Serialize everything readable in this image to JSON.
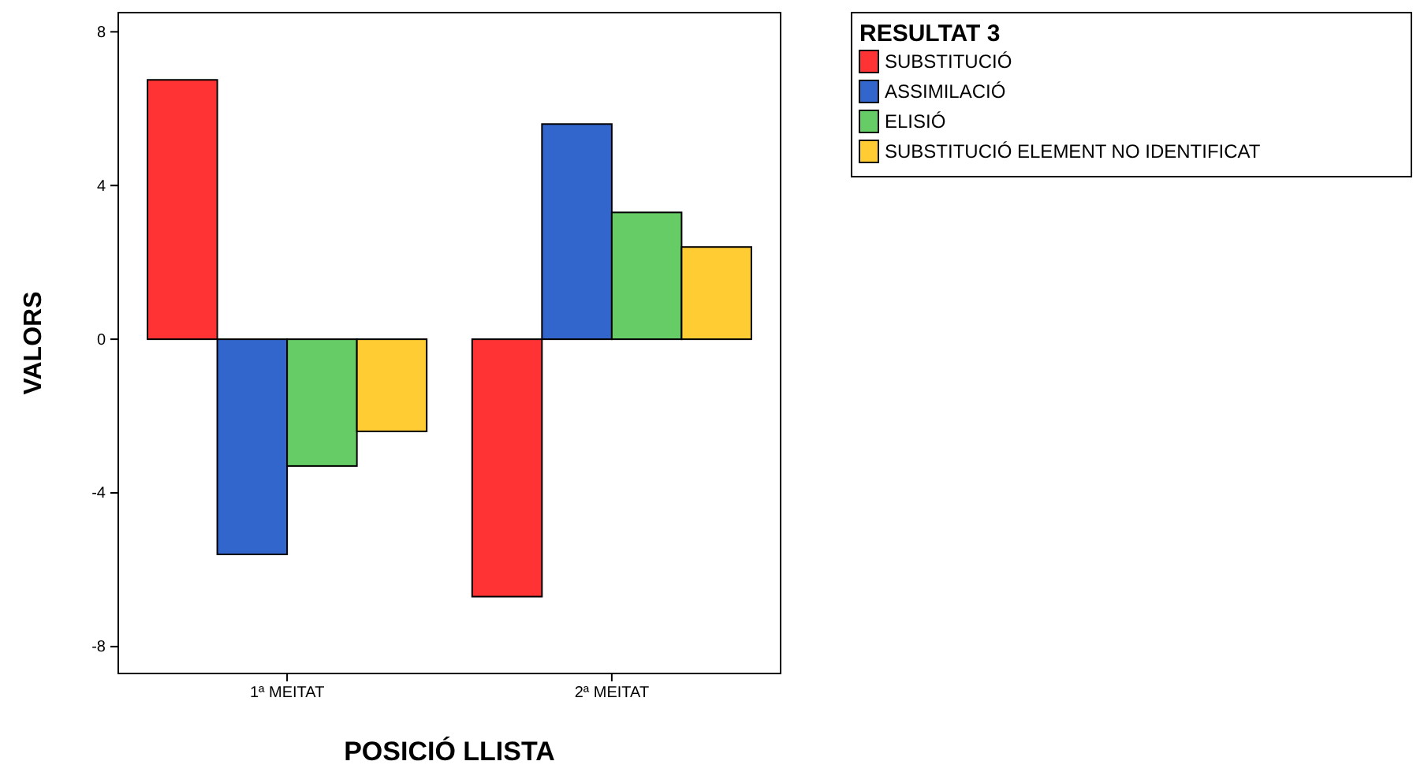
{
  "chart_data": {
    "type": "bar",
    "xlabel": "POSICIÓ LLISTA",
    "ylabel": "VALORS",
    "legend_title": "RESULTAT 3",
    "legend": "right",
    "grid": false,
    "categories": [
      "1ª MEITAT",
      "2ª MEITAT"
    ],
    "series": [
      {
        "name": "SUBSTITUCIÓ",
        "color": "#ff3333",
        "values": [
          6.75,
          -6.7
        ]
      },
      {
        "name": "ASSIMILACIÓ",
        "color": "#3366cc",
        "values": [
          -5.6,
          5.6
        ]
      },
      {
        "name": "ELISIÓ",
        "color": "#66cc66",
        "values": [
          -3.3,
          3.3
        ]
      },
      {
        "name": "SUBSTITUCIÓ ELEMENT NO IDENTIFICAT",
        "color": "#ffcc33",
        "values": [
          -2.4,
          2.4
        ]
      }
    ],
    "ylim": [
      -8.7,
      8.5
    ],
    "yticks": [
      -8,
      -4,
      0,
      4,
      8
    ]
  }
}
